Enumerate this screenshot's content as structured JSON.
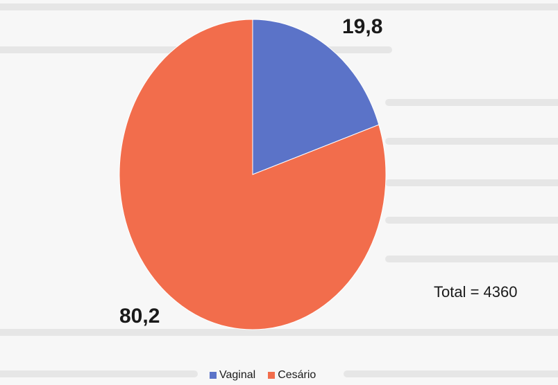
{
  "chart_data": {
    "type": "pie",
    "categories": [
      "Vaginal",
      "Cesário"
    ],
    "values": [
      19.8,
      80.2
    ],
    "value_labels": [
      "19,8",
      "80,2"
    ],
    "colors": [
      "#5b73c8",
      "#f26d4c"
    ],
    "annotation": "Total = 4360",
    "legend_position": "bottom"
  }
}
